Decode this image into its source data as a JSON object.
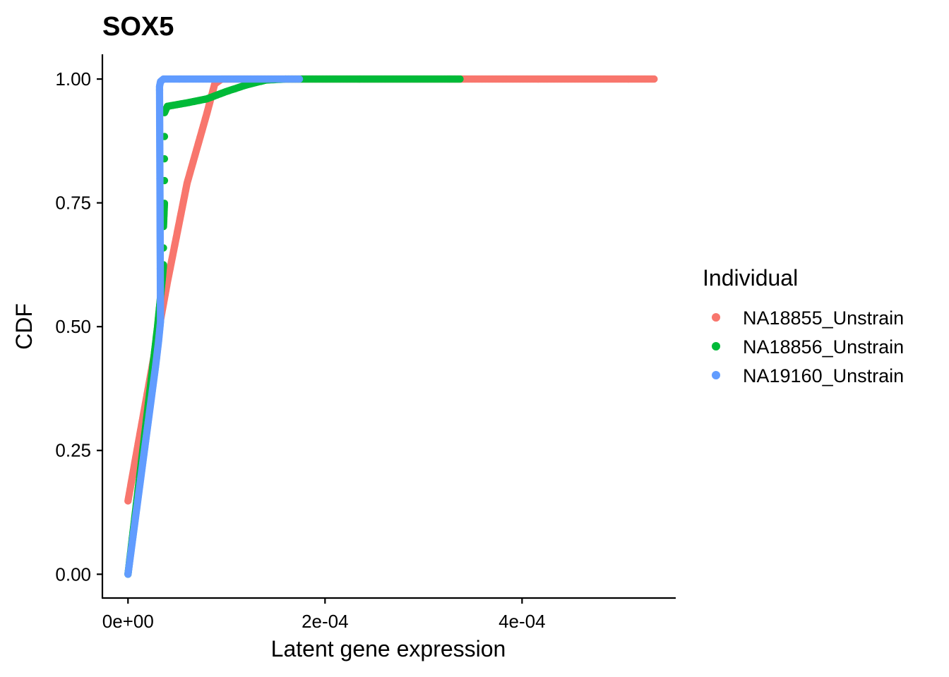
{
  "chart_data": {
    "type": "scatter",
    "title": "SOX5",
    "xlabel": "Latent gene expression",
    "ylabel": "CDF",
    "xlim": [
      -2.6e-05,
      0.000556
    ],
    "ylim": [
      -0.048,
      1.05
    ],
    "x_ticks": [
      {
        "value": 0,
        "label": "0e+00"
      },
      {
        "value": 0.0002,
        "label": "2e-04"
      },
      {
        "value": 0.0004,
        "label": "4e-04"
      }
    ],
    "y_ticks": [
      {
        "value": 0,
        "label": "0.00"
      },
      {
        "value": 0.25,
        "label": "0.25"
      },
      {
        "value": 0.5,
        "label": "0.50"
      },
      {
        "value": 0.75,
        "label": "0.75"
      },
      {
        "value": 1.0,
        "label": "1.00"
      }
    ],
    "grid": false,
    "legend": {
      "title": "Individual",
      "position": "right"
    },
    "series": [
      {
        "name": "NA18855_Unstrain",
        "color": "#F8766D",
        "points": [
          [
            0.0,
            0.148
          ],
          [
            1e-05,
            0.26
          ],
          [
            2e-05,
            0.37
          ],
          [
            3e-05,
            0.48
          ],
          [
            4e-05,
            0.59
          ],
          [
            5e-05,
            0.69
          ],
          [
            6e-05,
            0.79
          ],
          [
            7e-05,
            0.86
          ],
          [
            8e-05,
            0.93
          ],
          [
            8.8e-05,
            0.99
          ],
          [
            9.5e-05,
            1.0
          ],
          [
            0.00012,
            1.0
          ],
          [
            0.00016,
            1.0
          ],
          [
            0.0002,
            1.0
          ],
          [
            0.00024,
            1.0
          ],
          [
            0.00028,
            1.0
          ],
          [
            0.00032,
            1.0
          ],
          [
            0.00036,
            1.0
          ],
          [
            0.0004,
            1.0
          ],
          [
            0.00044,
            1.0
          ],
          [
            0.00048,
            1.0
          ],
          [
            0.00051,
            1.0
          ],
          [
            0.000534,
            1.0
          ]
        ]
      },
      {
        "name": "NA18856_Unstrain",
        "color": "#00BA38",
        "points": [
          [
            0.0,
            0.0
          ],
          [
            3e-06,
            0.05
          ],
          [
            6e-06,
            0.1
          ],
          [
            9e-06,
            0.15
          ],
          [
            1.2e-05,
            0.2
          ],
          [
            1.5e-05,
            0.25
          ],
          [
            1.8e-05,
            0.3
          ],
          [
            2.1e-05,
            0.35
          ],
          [
            2.4e-05,
            0.4
          ],
          [
            2.7e-05,
            0.45
          ],
          [
            3e-05,
            0.5
          ],
          [
            3.2e-05,
            0.54
          ],
          [
            3.4e-05,
            0.58
          ],
          [
            3.5e-05,
            0.6
          ],
          [
            3.6e-05,
            0.625
          ],
          [
            3.6e-05,
            0.659
          ],
          [
            3.6e-05,
            0.702
          ],
          [
            3.7e-05,
            0.749
          ],
          [
            3.7e-05,
            0.795
          ],
          [
            3.7e-05,
            0.839
          ],
          [
            3.7e-05,
            0.884
          ],
          [
            3.7e-05,
            0.932
          ],
          [
            4e-05,
            0.945
          ],
          [
            6e-05,
            0.952
          ],
          [
            8e-05,
            0.96
          ],
          [
            0.0001,
            0.975
          ],
          [
            0.00012,
            0.988
          ],
          [
            0.00014,
            0.998
          ],
          [
            0.00016,
            1.0
          ],
          [
            0.0002,
            1.0
          ],
          [
            0.00024,
            1.0
          ],
          [
            0.00028,
            1.0
          ],
          [
            0.00032,
            1.0
          ],
          [
            0.000337,
            1.0
          ]
        ]
      },
      {
        "name": "NA19160_Unstrain",
        "color": "#619CFF",
        "points": [
          [
            0.0,
            0.0
          ],
          [
            4e-06,
            0.06
          ],
          [
            8e-06,
            0.12
          ],
          [
            1.2e-05,
            0.18
          ],
          [
            1.6e-05,
            0.24
          ],
          [
            2e-05,
            0.3
          ],
          [
            2.4e-05,
            0.36
          ],
          [
            2.8e-05,
            0.42
          ],
          [
            3.1e-05,
            0.47
          ],
          [
            3.3e-05,
            0.51
          ],
          [
            3.2e-05,
            0.985
          ],
          [
            3.3e-05,
            0.995
          ],
          [
            3.6e-05,
            1.0
          ],
          [
            6e-05,
            1.0
          ],
          [
            8e-05,
            1.0
          ],
          [
            0.0001,
            1.0
          ],
          [
            0.00012,
            1.0
          ],
          [
            0.00014,
            1.0
          ],
          [
            0.00016,
            1.0
          ],
          [
            0.000174,
            1.0
          ]
        ]
      }
    ]
  }
}
